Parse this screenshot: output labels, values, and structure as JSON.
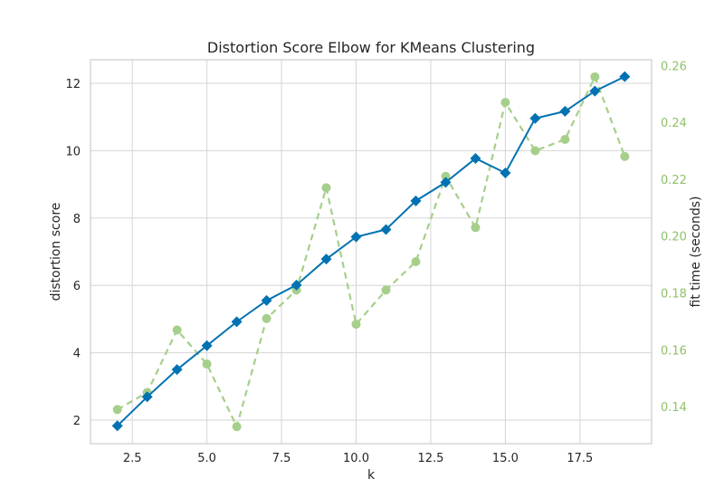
{
  "chart_data": {
    "type": "line",
    "title": "Distortion Score Elbow for KMeans Clustering",
    "xlabel": "k",
    "ylabel": "distortion score",
    "y2label": "fit time (seconds)",
    "xlim": [
      1.1,
      19.9
    ],
    "ylim": [
      1.3,
      12.7
    ],
    "y2lim": [
      0.127,
      0.262
    ],
    "x_ticks": [
      2.5,
      5.0,
      7.5,
      10.0,
      12.5,
      15.0,
      17.5
    ],
    "x_tick_labels": [
      "2.5",
      "5.0",
      "7.5",
      "10.0",
      "12.5",
      "15.0",
      "17.5"
    ],
    "y_ticks": [
      2,
      4,
      6,
      8,
      10,
      12
    ],
    "y_tick_labels": [
      "2",
      "4",
      "6",
      "8",
      "10",
      "12"
    ],
    "y2_ticks": [
      0.14,
      0.16,
      0.18,
      0.2,
      0.22,
      0.24,
      0.26
    ],
    "y2_tick_labels": [
      "0.14",
      "0.16",
      "0.18",
      "0.20",
      "0.22",
      "0.24",
      "0.26"
    ],
    "grid": true,
    "colors": {
      "distortion": "#0072b2",
      "fit_time": "#a6cf8b",
      "right_axis_text": "#8fc26a",
      "grid": "#d5d5d5",
      "frame": "#cccccc"
    },
    "x": [
      2,
      3,
      4,
      5,
      6,
      7,
      8,
      9,
      10,
      11,
      12,
      13,
      14,
      15,
      16,
      17,
      18,
      19
    ],
    "series": [
      {
        "key": "distortion",
        "axis": "left",
        "marker": "diamond",
        "values": [
          1.83,
          2.69,
          3.5,
          4.21,
          4.92,
          5.55,
          6.01,
          6.78,
          7.44,
          7.66,
          8.51,
          9.06,
          9.77,
          9.34,
          10.96,
          11.17,
          11.77,
          12.2
        ]
      },
      {
        "key": "fit_time",
        "axis": "right",
        "marker": "circle",
        "dashed": true,
        "values": [
          0.139,
          0.145,
          0.167,
          0.155,
          0.133,
          0.171,
          0.181,
          0.217,
          0.169,
          0.181,
          0.191,
          0.221,
          0.203,
          0.247,
          0.23,
          0.234,
          0.256,
          0.228
        ]
      }
    ]
  }
}
